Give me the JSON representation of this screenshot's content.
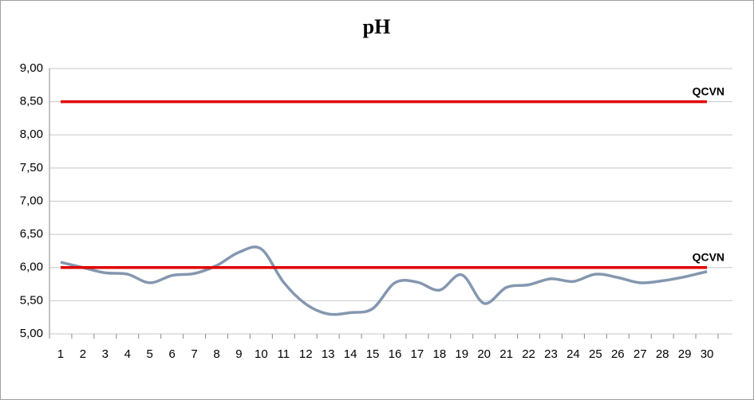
{
  "chart_data": {
    "type": "line",
    "title": "pH",
    "categories": [
      "1",
      "2",
      "3",
      "4",
      "5",
      "6",
      "7",
      "8",
      "9",
      "10",
      "11",
      "12",
      "13",
      "14",
      "15",
      "16",
      "17",
      "18",
      "19",
      "20",
      "21",
      "22",
      "23",
      "24",
      "25",
      "26",
      "27",
      "28",
      "29",
      "30"
    ],
    "series": [
      {
        "color": "#8497b0",
        "smooth": true,
        "values": [
          6.08,
          6.0,
          5.92,
          5.9,
          5.77,
          5.88,
          5.91,
          6.03,
          6.23,
          6.28,
          5.78,
          5.45,
          5.3,
          5.32,
          5.38,
          5.77,
          5.78,
          5.66,
          5.89,
          5.46,
          5.7,
          5.74,
          5.83,
          5.79,
          5.9,
          5.85,
          5.77,
          5.8,
          5.86,
          5.94
        ]
      },
      {
        "name": "QCVN",
        "color": "#e00000",
        "values": [
          8.5,
          8.5,
          8.5,
          8.5,
          8.5,
          8.5,
          8.5,
          8.5,
          8.5,
          8.5,
          8.5,
          8.5,
          8.5,
          8.5,
          8.5,
          8.5,
          8.5,
          8.5,
          8.5,
          8.5,
          8.5,
          8.5,
          8.5,
          8.5,
          8.5,
          8.5,
          8.5,
          8.5,
          8.5,
          8.5
        ]
      },
      {
        "name": "QCVN",
        "color": "#e00000",
        "values": [
          6,
          6,
          6,
          6,
          6,
          6,
          6,
          6,
          6,
          6,
          6,
          6,
          6,
          6,
          6,
          6,
          6,
          6,
          6,
          6,
          6,
          6,
          6,
          6,
          6,
          6,
          6,
          6,
          6,
          6
        ]
      }
    ],
    "ylim": [
      5,
      9
    ],
    "yticks": [
      {
        "value": 5,
        "label": "5,00"
      },
      {
        "value": 5.5,
        "label": "5,50"
      },
      {
        "value": 6,
        "label": "6,00"
      },
      {
        "value": 6.5,
        "label": "6,50"
      },
      {
        "value": 7,
        "label": "7,00"
      },
      {
        "value": 7.5,
        "label": "7,50"
      },
      {
        "value": 8,
        "label": "8,00"
      },
      {
        "value": 8.5,
        "label": "8,50"
      },
      {
        "value": 9,
        "label": "9,00"
      }
    ],
    "grid": true
  }
}
